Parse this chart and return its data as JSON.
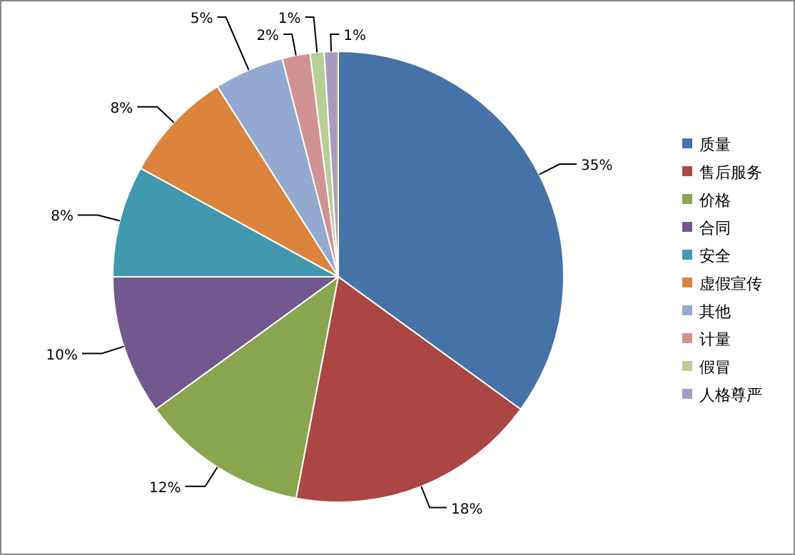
{
  "chart_data": {
    "type": "pie",
    "categories": [
      "质量",
      "售后服务",
      "价格",
      "合同",
      "安全",
      "虚假宣传",
      "其他",
      "计量",
      "假冒",
      "人格尊严"
    ],
    "values": [
      35,
      18,
      12,
      10,
      8,
      8,
      5,
      2,
      1,
      1
    ],
    "value_labels": [
      "35%",
      "18%",
      "12%",
      "10%",
      "8%",
      "8%",
      "5%",
      "2%",
      "1%",
      "1%"
    ],
    "colors": [
      "#4572a7",
      "#aa4643",
      "#89a54e",
      "#71588f",
      "#4198af",
      "#db843d",
      "#93a9cf",
      "#d19392",
      "#b9cd96",
      "#a99bbd"
    ],
    "legend": "right"
  }
}
